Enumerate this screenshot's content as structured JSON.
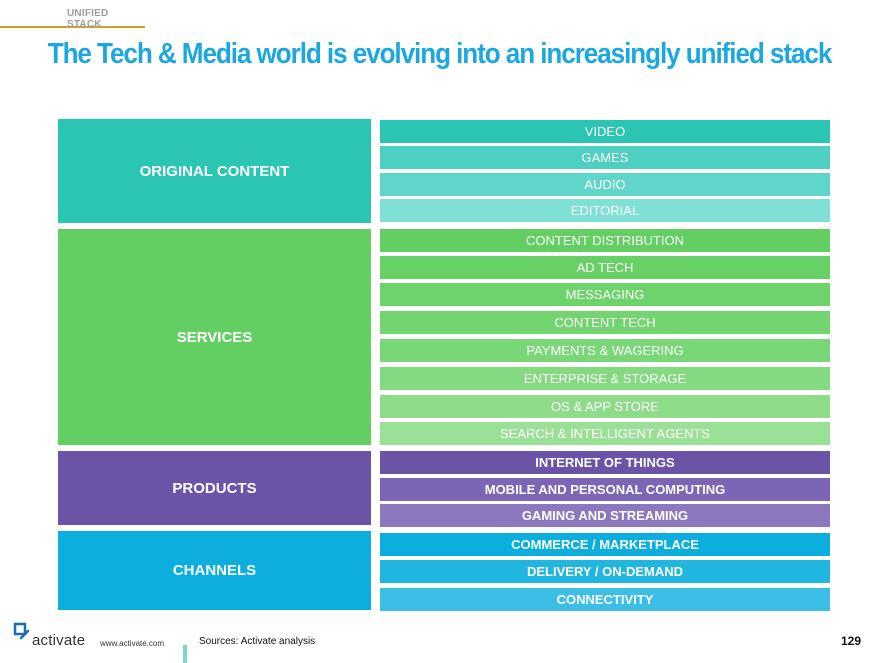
{
  "header": {
    "tag": "UNIFIED STACK"
  },
  "title": "The Tech & Media world is evolving into an increasingly unified stack",
  "categories": [
    {
      "label": "ORIGINAL CONTENT",
      "color": "#2bc5b4",
      "items": [
        {
          "label": "VIDEO",
          "color": "#2bc5b4"
        },
        {
          "label": "GAMES",
          "color": "#4dd0c1"
        },
        {
          "label": "AUDIO",
          "color": "#5fd6c9"
        },
        {
          "label": "EDITORIAL",
          "color": "#7fe0d5"
        }
      ]
    },
    {
      "label": "SERVICES",
      "color": "#63cf63",
      "items": [
        {
          "label": "CONTENT DISTRIBUTION",
          "color": "#63cf63"
        },
        {
          "label": "AD TECH",
          "color": "#67d166"
        },
        {
          "label": "MESSAGING",
          "color": "#6dd36b"
        },
        {
          "label": "CONTENT TECH",
          "color": "#73d570"
        },
        {
          "label": "PAYMENTS & WAGERING",
          "color": "#7ad777"
        },
        {
          "label": "ENTERPRISE & STORAGE",
          "color": "#83da80"
        },
        {
          "label": "OS & APP STORE",
          "color": "#8edc8a"
        },
        {
          "label": "SEARCH & INTELLIGENT AGENTS",
          "color": "#9ae097"
        }
      ]
    },
    {
      "label": "PRODUCTS",
      "color": "#6b54a8",
      "items": [
        {
          "label": "INTERNET OF THINGS",
          "color": "#6b54a8"
        },
        {
          "label": "MOBILE AND PERSONAL COMPUTING",
          "color": "#7c65b5"
        },
        {
          "label": "GAMING AND STREAMING",
          "color": "#8d78c0"
        }
      ]
    },
    {
      "label": "CHANNELS",
      "color": "#0baedc",
      "items": [
        {
          "label": "COMMERCE / MARKETPLACE",
          "color": "#0baedc"
        },
        {
          "label": "DELIVERY / ON-DEMAND",
          "color": "#21b6e0"
        },
        {
          "label": "CONNECTIVITY",
          "color": "#3cbfe6"
        }
      ]
    }
  ],
  "footer": {
    "brand": "activate",
    "url": "www.activate.com",
    "source": "Sources: Activate analysis",
    "page_number": "129"
  }
}
